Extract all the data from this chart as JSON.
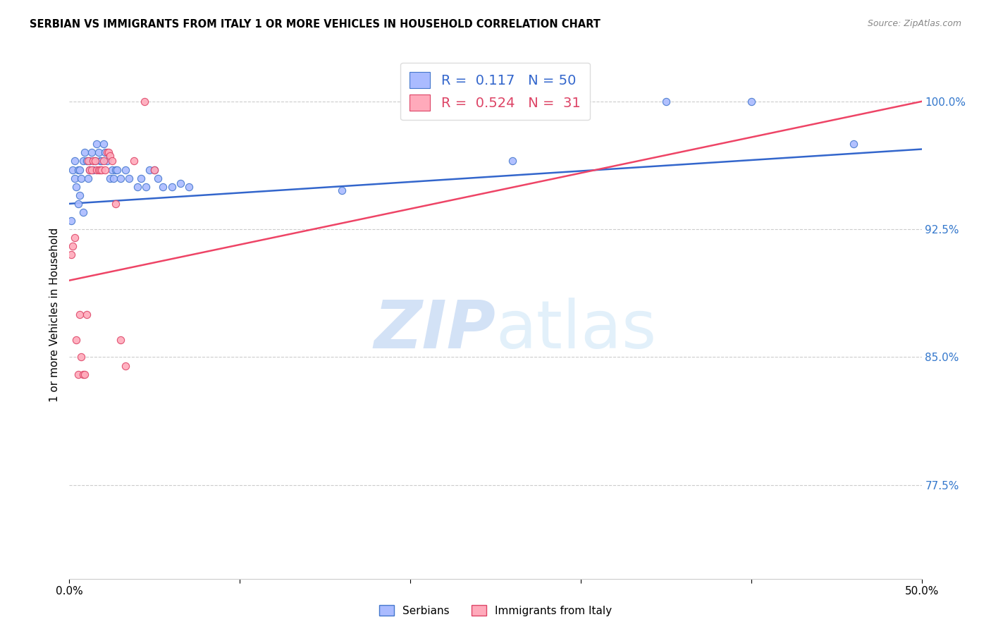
{
  "title": "SERBIAN VS IMMIGRANTS FROM ITALY 1 OR MORE VEHICLES IN HOUSEHOLD CORRELATION CHART",
  "source": "Source: ZipAtlas.com",
  "ylabel": "1 or more Vehicles in Household",
  "ytick_labels": [
    "77.5%",
    "85.0%",
    "92.5%",
    "100.0%"
  ],
  "ytick_values": [
    0.775,
    0.85,
    0.925,
    1.0
  ],
  "xlim": [
    0.0,
    0.5
  ],
  "ylim": [
    0.72,
    1.03
  ],
  "xtick_positions": [
    0.0,
    0.1,
    0.2,
    0.3,
    0.4,
    0.5
  ],
  "xtick_labels": [
    "0.0%",
    "",
    "",
    "",
    "",
    "50.0%"
  ],
  "legend_serbian": "Serbians",
  "legend_italy": "Immigrants from Italy",
  "r_serbian": 0.117,
  "n_serbian": 50,
  "r_italy": 0.524,
  "n_italy": 31,
  "serbian_fill_color": "#aabbff",
  "italy_fill_color": "#ffaabb",
  "serbian_edge_color": "#4477cc",
  "italy_edge_color": "#dd4466",
  "serbian_line_color": "#3366cc",
  "italy_line_color": "#ee4466",
  "ytick_color": "#3377cc",
  "watermark_color": "#ddeeff",
  "serbian_x": [
    0.001,
    0.002,
    0.003,
    0.003,
    0.004,
    0.005,
    0.005,
    0.006,
    0.006,
    0.007,
    0.008,
    0.008,
    0.009,
    0.01,
    0.011,
    0.012,
    0.012,
    0.013,
    0.014,
    0.015,
    0.016,
    0.017,
    0.018,
    0.019,
    0.02,
    0.021,
    0.022,
    0.024,
    0.025,
    0.026,
    0.027,
    0.028,
    0.03,
    0.033,
    0.035,
    0.04,
    0.042,
    0.045,
    0.047,
    0.05,
    0.052,
    0.055,
    0.06,
    0.065,
    0.07,
    0.16,
    0.26,
    0.35,
    0.4,
    0.46
  ],
  "serbian_y": [
    0.93,
    0.96,
    0.955,
    0.965,
    0.95,
    0.94,
    0.96,
    0.96,
    0.945,
    0.955,
    0.965,
    0.935,
    0.97,
    0.965,
    0.955,
    0.965,
    0.96,
    0.97,
    0.96,
    0.965,
    0.975,
    0.97,
    0.965,
    0.965,
    0.975,
    0.97,
    0.965,
    0.955,
    0.96,
    0.955,
    0.96,
    0.96,
    0.955,
    0.96,
    0.955,
    0.95,
    0.955,
    0.95,
    0.96,
    0.96,
    0.955,
    0.95,
    0.95,
    0.952,
    0.95,
    0.948,
    0.965,
    1.0,
    1.0,
    0.975
  ],
  "italy_x": [
    0.001,
    0.002,
    0.003,
    0.004,
    0.005,
    0.006,
    0.007,
    0.008,
    0.009,
    0.01,
    0.011,
    0.012,
    0.013,
    0.014,
    0.015,
    0.016,
    0.017,
    0.018,
    0.019,
    0.02,
    0.021,
    0.022,
    0.023,
    0.024,
    0.025,
    0.027,
    0.03,
    0.033,
    0.038,
    0.044,
    0.05
  ],
  "italy_y": [
    0.91,
    0.915,
    0.92,
    0.86,
    0.84,
    0.875,
    0.85,
    0.84,
    0.84,
    0.875,
    0.965,
    0.96,
    0.96,
    0.965,
    0.965,
    0.96,
    0.96,
    0.96,
    0.96,
    0.965,
    0.96,
    0.97,
    0.97,
    0.968,
    0.965,
    0.94,
    0.86,
    0.845,
    0.965,
    1.0,
    0.96
  ]
}
